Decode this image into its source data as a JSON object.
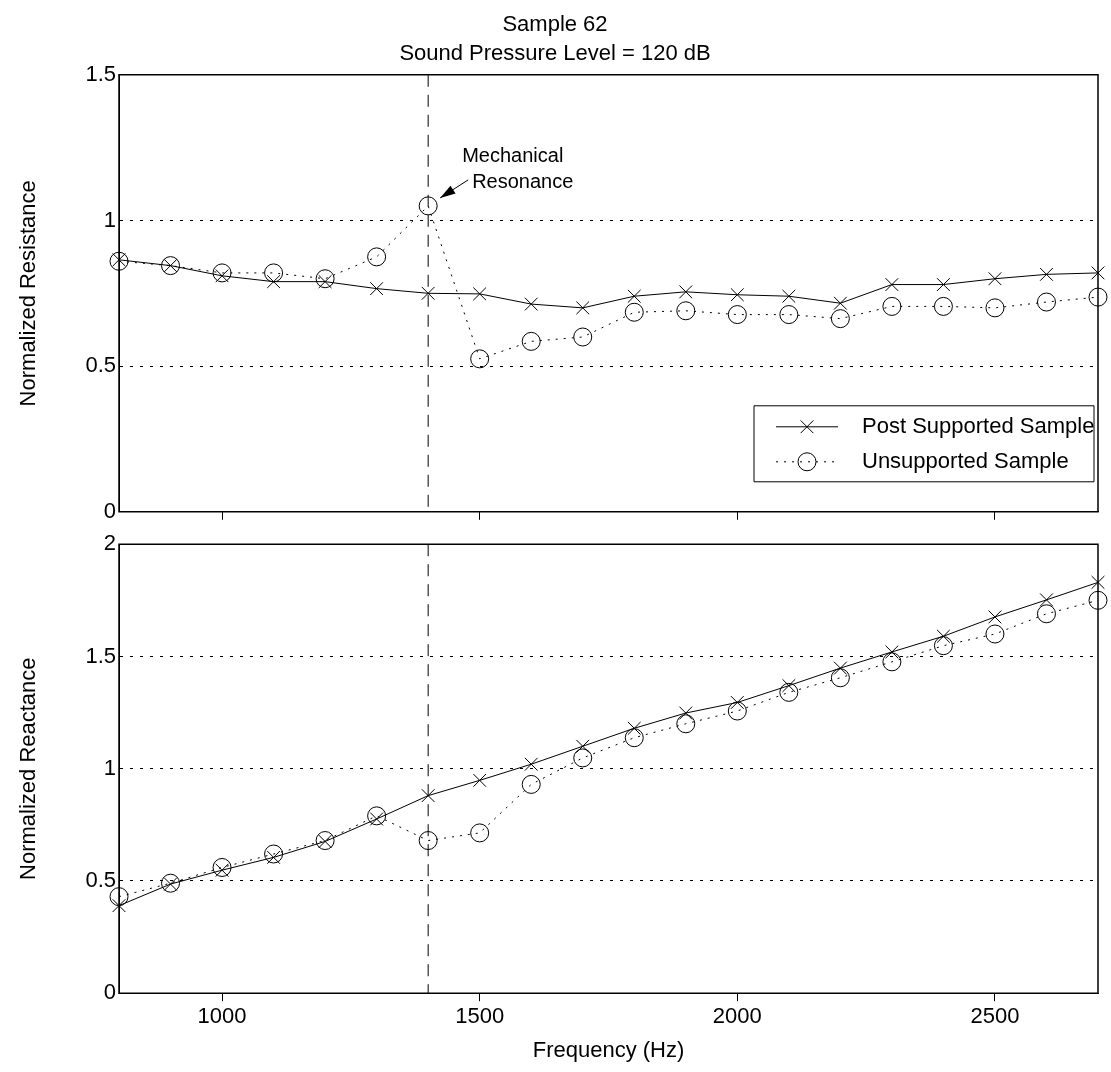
{
  "chart_data": [
    {
      "type": "line",
      "title": "Sample 62",
      "subtitle": "Sound Pressure Level = 120 dB",
      "ylabel": "Normalized Resistance",
      "x": [
        800,
        900,
        1000,
        1100,
        1200,
        1300,
        1400,
        1500,
        1600,
        1700,
        1800,
        1900,
        2000,
        2100,
        2200,
        2300,
        2400,
        2500,
        2600,
        2700
      ],
      "xlim": [
        800,
        2700
      ],
      "xticks": [
        1000,
        1500,
        2000,
        2500
      ],
      "ylim": [
        0,
        1.5
      ],
      "yticks": [
        0,
        0.5,
        1,
        1.5
      ],
      "grid": "y",
      "legend": "bottom right",
      "tick_labels": "y",
      "series": [
        {
          "name": "Post Supported Sample",
          "color": "#000000",
          "marker": "cross",
          "line_style": "solid",
          "values": [
            0.865,
            0.845,
            0.81,
            0.79,
            0.79,
            0.766,
            0.75,
            0.748,
            0.713,
            0.7,
            0.74,
            0.755,
            0.745,
            0.74,
            0.716,
            0.78,
            0.78,
            0.8,
            0.815,
            0.82
          ]
        },
        {
          "name": "Unsupported Sample",
          "color": "#000000",
          "marker": "circle",
          "line_style": "dotted",
          "values": [
            0.86,
            0.845,
            0.82,
            0.82,
            0.8,
            0.875,
            1.05,
            0.525,
            0.585,
            0.6,
            0.685,
            0.69,
            0.677,
            0.677,
            0.663,
            0.705,
            0.705,
            0.7,
            0.72,
            0.737
          ]
        }
      ],
      "ref_lines": [
        {
          "axis": "x",
          "value": 1400,
          "color": "#000000",
          "line_style": "dashed"
        }
      ],
      "annotations": [
        {
          "text": "Mechanical Resonance",
          "x": 1400,
          "y": 1.05
        }
      ]
    },
    {
      "type": "line",
      "xlabel": "Frequency (Hz)",
      "ylabel": "Normalized Reactance",
      "x": [
        800,
        900,
        1000,
        1100,
        1200,
        1300,
        1400,
        1500,
        1600,
        1700,
        1800,
        1900,
        2000,
        2100,
        2200,
        2300,
        2400,
        2500,
        2600,
        2700
      ],
      "xlim": [
        800,
        2700
      ],
      "xticks": [
        1000,
        1500,
        2000,
        2500
      ],
      "ylim": [
        0,
        2
      ],
      "yticks": [
        0,
        0.5,
        1,
        1.5,
        2
      ],
      "grid": "y",
      "series": [
        {
          "color": "#000000",
          "marker": "cross",
          "line_style": "solid",
          "values": [
            0.39,
            0.486,
            0.548,
            0.605,
            0.676,
            0.776,
            0.88,
            0.948,
            1.02,
            1.1,
            1.18,
            1.248,
            1.295,
            1.37,
            1.448,
            1.52,
            1.59,
            1.676,
            1.752,
            1.83
          ]
        },
        {
          "color": "#000000",
          "marker": "circle",
          "line_style": "dotted",
          "values": [
            0.43,
            0.49,
            0.56,
            0.62,
            0.68,
            0.79,
            0.68,
            0.714,
            0.93,
            1.048,
            1.138,
            1.2,
            1.257,
            1.34,
            1.405,
            1.476,
            1.548,
            1.6,
            1.69,
            1.75
          ]
        }
      ],
      "ref_lines": [
        {
          "axis": "x",
          "value": 1400,
          "color": "#000000",
          "line_style": "dashed"
        }
      ]
    }
  ]
}
